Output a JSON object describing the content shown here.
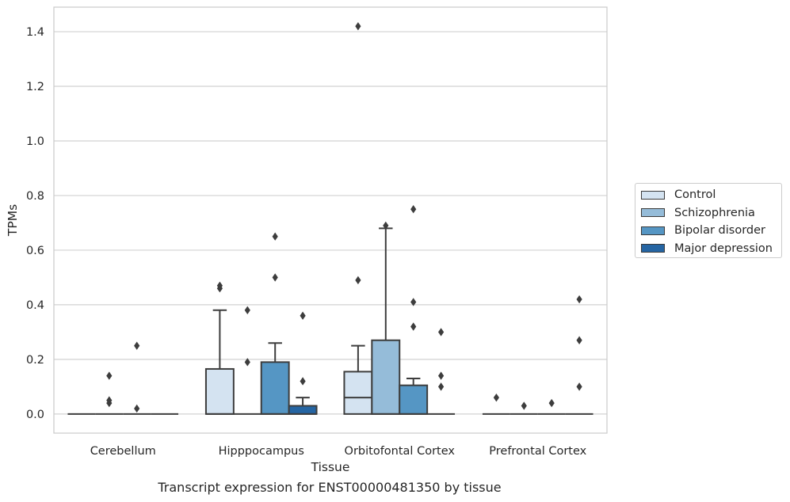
{
  "chart_data": {
    "type": "box",
    "xlabel": "Tissue",
    "ylabel": "TPMs",
    "caption": "Transcript expression for ENST00000481350 by tissue",
    "ylim": [
      -0.07,
      1.49
    ],
    "yticks": [
      0.0,
      0.2,
      0.4,
      0.6,
      0.8,
      1.0,
      1.2,
      1.4
    ],
    "grid": true,
    "legend_position": "right",
    "categories": [
      "Cerebellum",
      "Hipppocampus",
      "Orbitofontal Cortex",
      "Prefrontal Cortex"
    ],
    "series": [
      {
        "name": "Control",
        "color": "#d4e3f1",
        "boxes": [
          {
            "q1": 0,
            "median": 0,
            "q3": 0,
            "whislo": 0,
            "whishi": 0,
            "fliers": []
          },
          {
            "q1": 0,
            "median": 0,
            "q3": 0.165,
            "whislo": 0,
            "whishi": 0.38,
            "fliers": [
              0.46,
              0.47
            ]
          },
          {
            "q1": 0,
            "median": 0.06,
            "q3": 0.155,
            "whislo": 0,
            "whishi": 0.25,
            "fliers": [
              0.49,
              1.42
            ]
          },
          {
            "q1": 0,
            "median": 0,
            "q3": 0,
            "whislo": 0,
            "whishi": 0,
            "fliers": [
              0.06
            ]
          }
        ]
      },
      {
        "name": "Schizophrenia",
        "color": "#95bcd9",
        "boxes": [
          {
            "q1": 0,
            "median": 0,
            "q3": 0,
            "whislo": 0,
            "whishi": 0,
            "fliers": [
              0.04,
              0.05,
              0.14
            ]
          },
          {
            "q1": 0,
            "median": 0,
            "q3": 0,
            "whislo": 0,
            "whishi": 0,
            "fliers": [
              0.19,
              0.38
            ]
          },
          {
            "q1": 0,
            "median": 0,
            "q3": 0.27,
            "whislo": 0,
            "whishi": 0.68,
            "fliers": [
              0.69
            ]
          },
          {
            "q1": 0,
            "median": 0,
            "q3": 0,
            "whislo": 0,
            "whishi": 0,
            "fliers": [
              0.03
            ]
          }
        ]
      },
      {
        "name": "Bipolar disorder",
        "color": "#5596c4",
        "boxes": [
          {
            "q1": 0,
            "median": 0,
            "q3": 0,
            "whislo": 0,
            "whishi": 0,
            "fliers": [
              0.02,
              0.25
            ]
          },
          {
            "q1": 0,
            "median": 0,
            "q3": 0.19,
            "whislo": 0,
            "whishi": 0.26,
            "fliers": [
              0.5,
              0.65
            ]
          },
          {
            "q1": 0,
            "median": 0,
            "q3": 0.105,
            "whislo": 0,
            "whishi": 0.13,
            "fliers": [
              0.32,
              0.41,
              0.75
            ]
          },
          {
            "q1": 0,
            "median": 0,
            "q3": 0,
            "whislo": 0,
            "whishi": 0,
            "fliers": [
              0.04
            ]
          }
        ]
      },
      {
        "name": "Major depression",
        "color": "#2565a3",
        "boxes": [
          {
            "q1": 0,
            "median": 0,
            "q3": 0,
            "whislo": 0,
            "whishi": 0,
            "fliers": []
          },
          {
            "q1": 0,
            "median": 0,
            "q3": 0.03,
            "whislo": 0,
            "whishi": 0.06,
            "fliers": [
              0.12,
              0.36
            ]
          },
          {
            "q1": 0,
            "median": 0,
            "q3": 0,
            "whislo": 0,
            "whishi": 0,
            "fliers": [
              0.1,
              0.14,
              0.3
            ]
          },
          {
            "q1": 0,
            "median": 0,
            "q3": 0,
            "whislo": 0,
            "whishi": 0,
            "fliers": [
              0.1,
              0.27,
              0.42
            ]
          }
        ]
      }
    ]
  }
}
